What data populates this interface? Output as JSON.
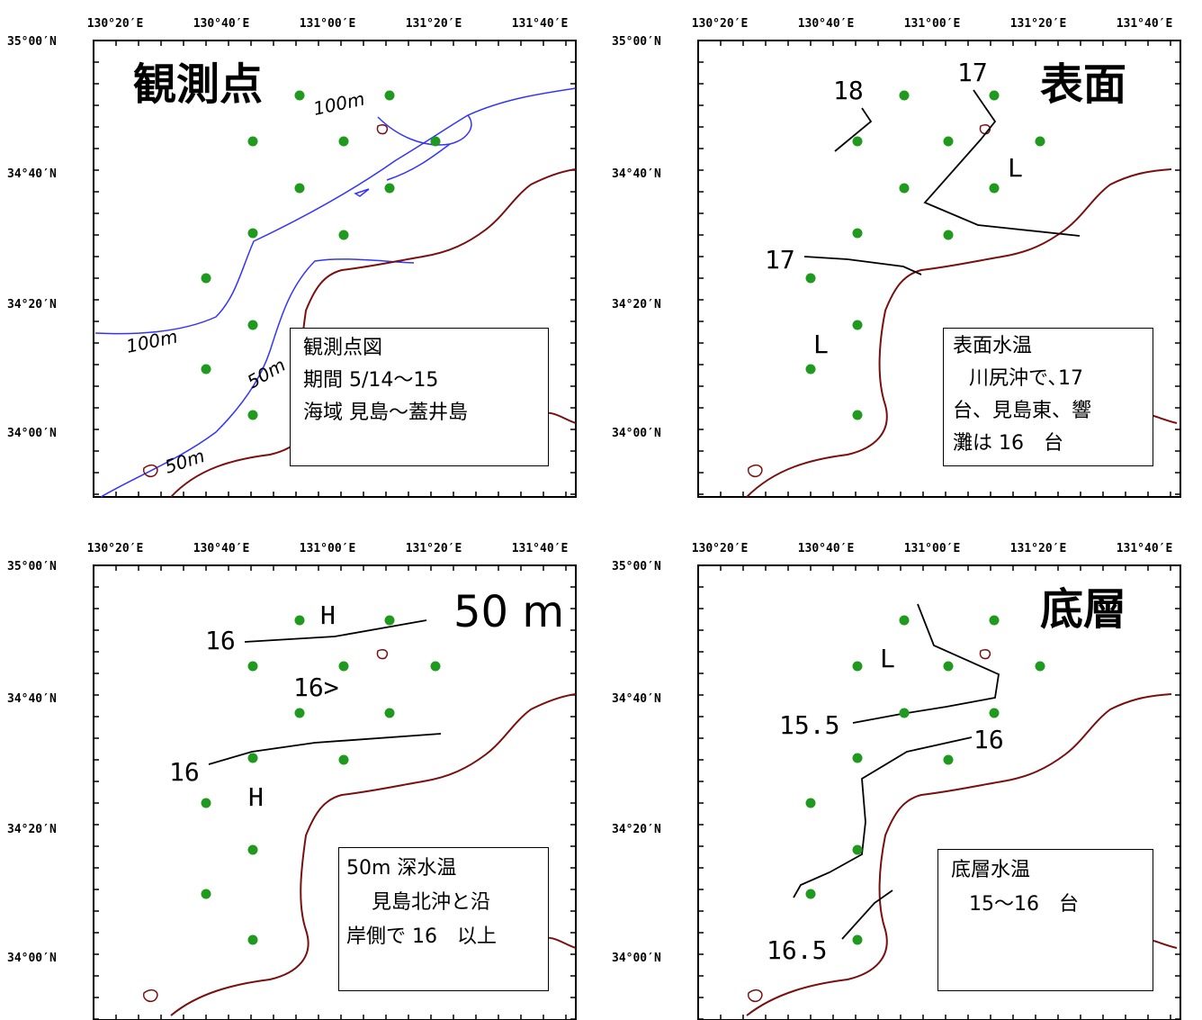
{
  "colors": {
    "coast": "#7a0f0f",
    "isobath": "#3333ff",
    "station": "#1f9a1f",
    "contour": "#000000",
    "frame": "#000000"
  },
  "axes": {
    "lon_labels": [
      "130°20′E",
      "130°40′E",
      "131°00′E",
      "131°20′E",
      "131°40′E"
    ],
    "lat_labels": [
      "35°00′N",
      "34°40′N",
      "34°20′N",
      "34°00′N"
    ]
  },
  "panels": [
    {
      "id": "stations",
      "title": "観測点",
      "info": [
        "観測点図",
        "期間 5/14～15",
        "海域 見島～蓋井島"
      ],
      "isobath_labels": [
        "100m",
        "100m",
        "50m",
        "50m"
      ]
    },
    {
      "id": "surface",
      "title": "表面",
      "info": [
        "表面水温",
        "川尻沖で､17",
        "台、見島東、響",
        "灘は 16　台"
      ],
      "contour_labels": [
        "18",
        "17",
        "17"
      ],
      "markers": [
        "L",
        "L"
      ]
    },
    {
      "id": "depth50",
      "title": "50 m",
      "info": [
        "50m 深水温",
        "見島北沖と沿",
        "岸側で 16　以上"
      ],
      "contour_labels": [
        "16",
        "16",
        "16>"
      ],
      "markers": [
        "H",
        "H"
      ]
    },
    {
      "id": "bottom",
      "title": "底層",
      "info": [
        "底層水温",
        "15～16　台"
      ],
      "contour_labels": [
        "15.5",
        "16",
        "16.5"
      ],
      "markers": [
        "L"
      ]
    }
  ]
}
